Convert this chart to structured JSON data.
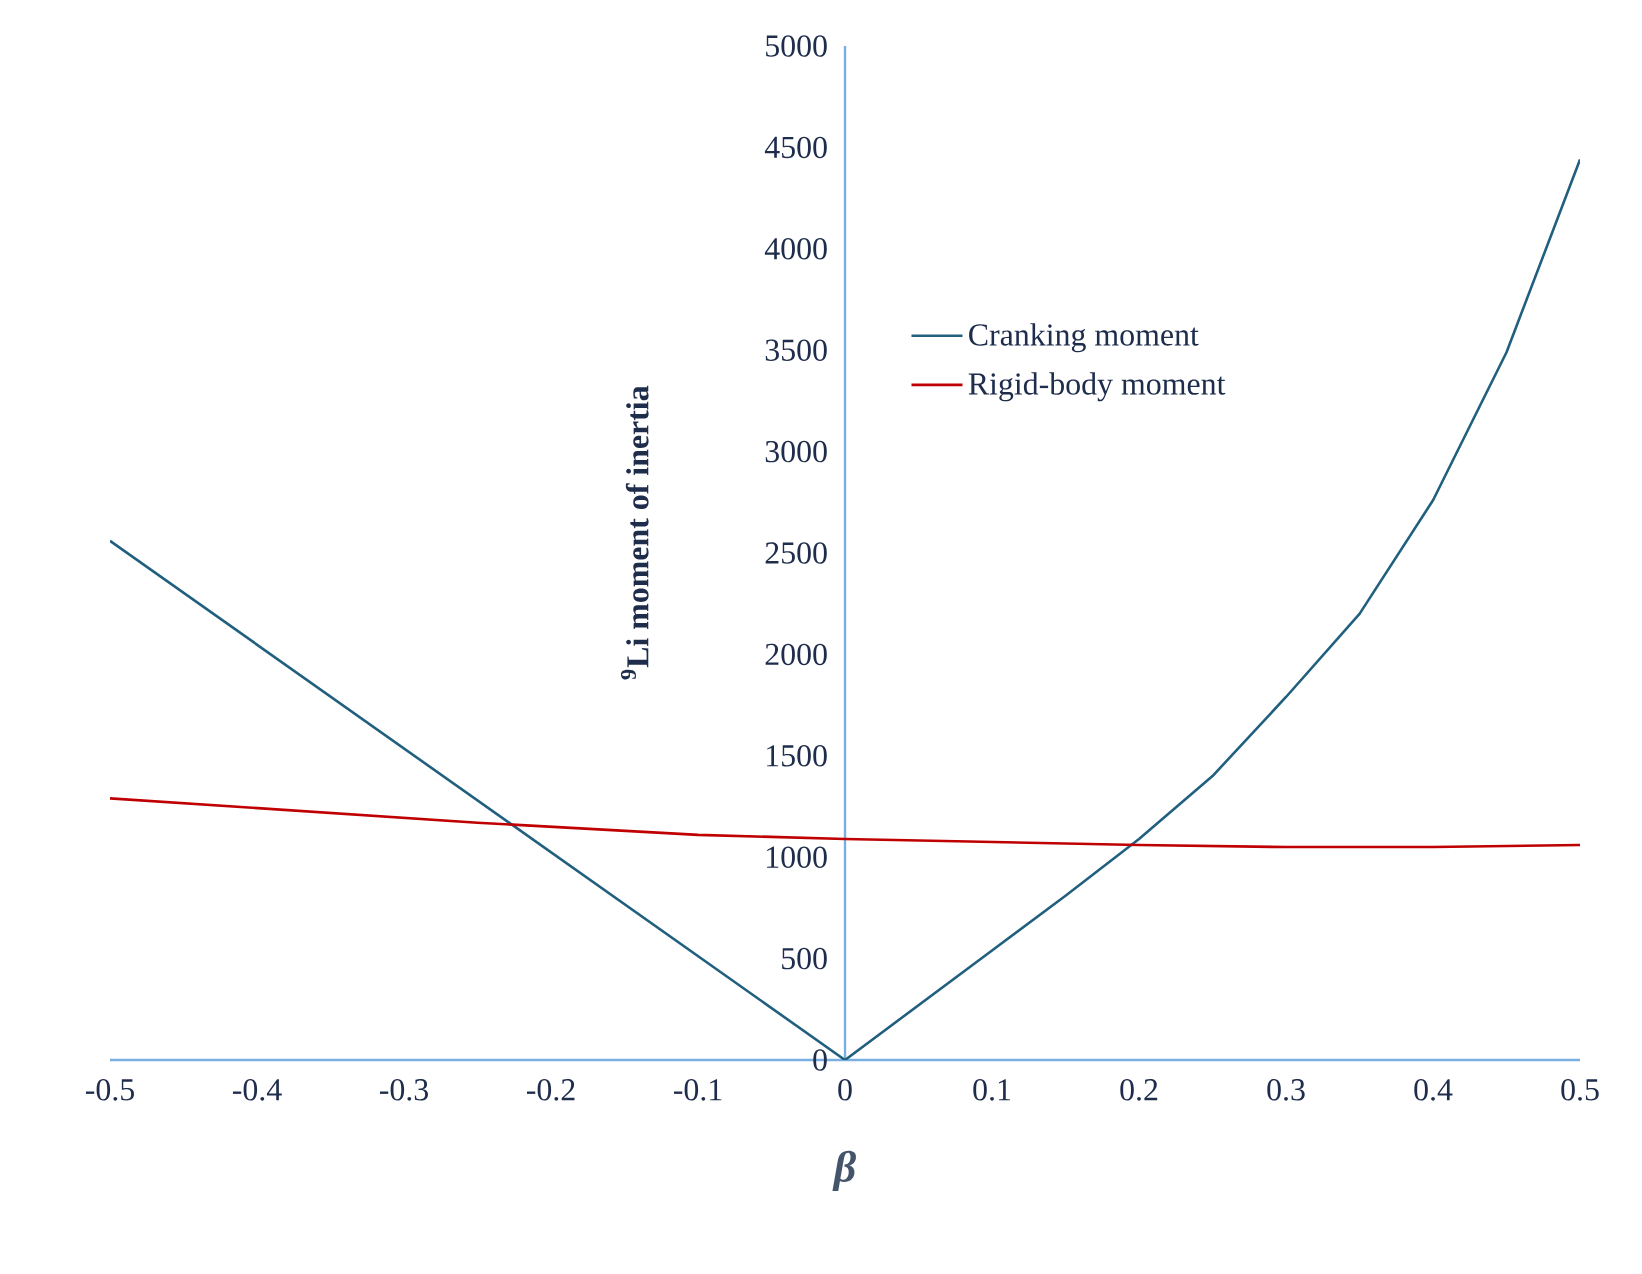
{
  "chart_data": {
    "type": "line",
    "xlabel": "β",
    "ylabel": "$^{9}$Li moment of inertia",
    "xlim": [
      -0.5,
      0.5
    ],
    "xticks": [
      -0.5,
      -0.4,
      -0.3,
      -0.2,
      -0.1,
      0,
      0.1,
      0.2,
      0.3,
      0.4,
      0.5
    ],
    "ylim": [
      0,
      5000
    ],
    "yticks": [
      0,
      500,
      1000,
      1500,
      2000,
      2500,
      3000,
      3500,
      4000,
      4500,
      5000
    ],
    "grid": false,
    "legend": "top",
    "marker": "none",
    "line_style": "solid",
    "series": [
      {
        "name": "Cranking moment",
        "color": "#215f7f",
        "x": [
          -0.5,
          -0.25,
          0,
          0.05,
          0.1,
          0.15,
          0.2,
          0.25,
          0.3,
          0.35,
          0.4,
          0.45,
          0.5
        ],
        "values": [
          2560,
          1280,
          0,
          270,
          540,
          810,
          1090,
          1400,
          1790,
          2200,
          2760,
          3490,
          4440
        ]
      },
      {
        "name": "Rigid-body moment",
        "color": "#c00000",
        "x": [
          -0.5,
          -0.25,
          -0.1,
          0,
          0.2,
          0.3,
          0.4,
          0.5
        ],
        "values": [
          1290,
          1170,
          1110,
          1090,
          1060,
          1050,
          1050,
          1060
        ]
      }
    ]
  }
}
